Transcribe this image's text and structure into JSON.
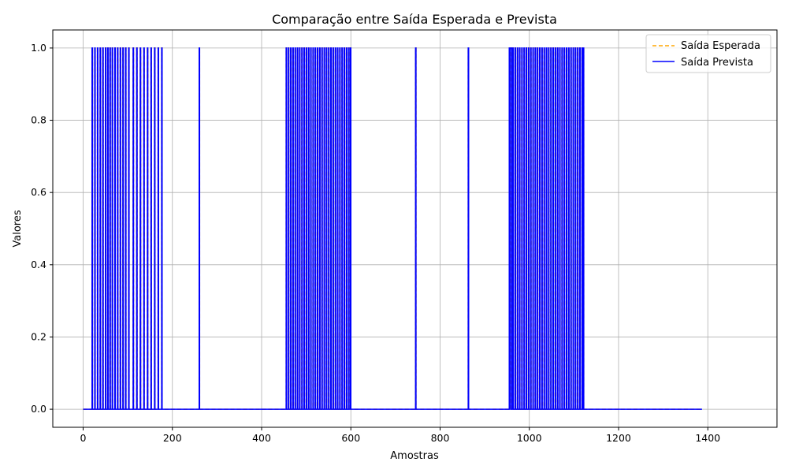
{
  "chart_data": {
    "type": "line",
    "title": "Comparação entre Saída Esperada e Prevista",
    "xlabel": "Amostras",
    "ylabel": "Valores",
    "xlim": [
      -68,
      1555
    ],
    "ylim": [
      -0.05,
      1.05
    ],
    "xticks": [
      0,
      200,
      400,
      600,
      800,
      1000,
      1200,
      1400
    ],
    "yticks": [
      0.0,
      0.2,
      0.4,
      0.6,
      0.8,
      1.0
    ],
    "grid": true,
    "legend_position": "top-right",
    "x_range": [
      0,
      1387
    ],
    "spikes": [
      20,
      26,
      32,
      38,
      44,
      50,
      55,
      60,
      65,
      71,
      77,
      83,
      89,
      95,
      102,
      112,
      120,
      128,
      136,
      144,
      152,
      160,
      168,
      176,
      260,
      455,
      460,
      465,
      470,
      475,
      480,
      485,
      490,
      495,
      500,
      505,
      510,
      515,
      520,
      525,
      530,
      535,
      540,
      545,
      550,
      555,
      560,
      565,
      570,
      575,
      580,
      585,
      590,
      595,
      599,
      745,
      863,
      958,
      963,
      968,
      973,
      978,
      983,
      988,
      993,
      998,
      1003,
      1008,
      1013,
      1018,
      1023,
      1028,
      1033,
      1038,
      1043,
      1048,
      1053,
      1058,
      1063,
      1068,
      1073,
      1078,
      1083,
      1088,
      1093,
      1098,
      1103,
      1108,
      1113,
      1118,
      1121
    ],
    "plateaus": [
      [
        955,
        962
      ]
    ],
    "series": [
      {
        "name": "Saída Esperada",
        "color": "#ffa500",
        "style": "dashed"
      },
      {
        "name": "Saída Prevista",
        "color": "#0000ff",
        "style": "solid"
      }
    ]
  }
}
